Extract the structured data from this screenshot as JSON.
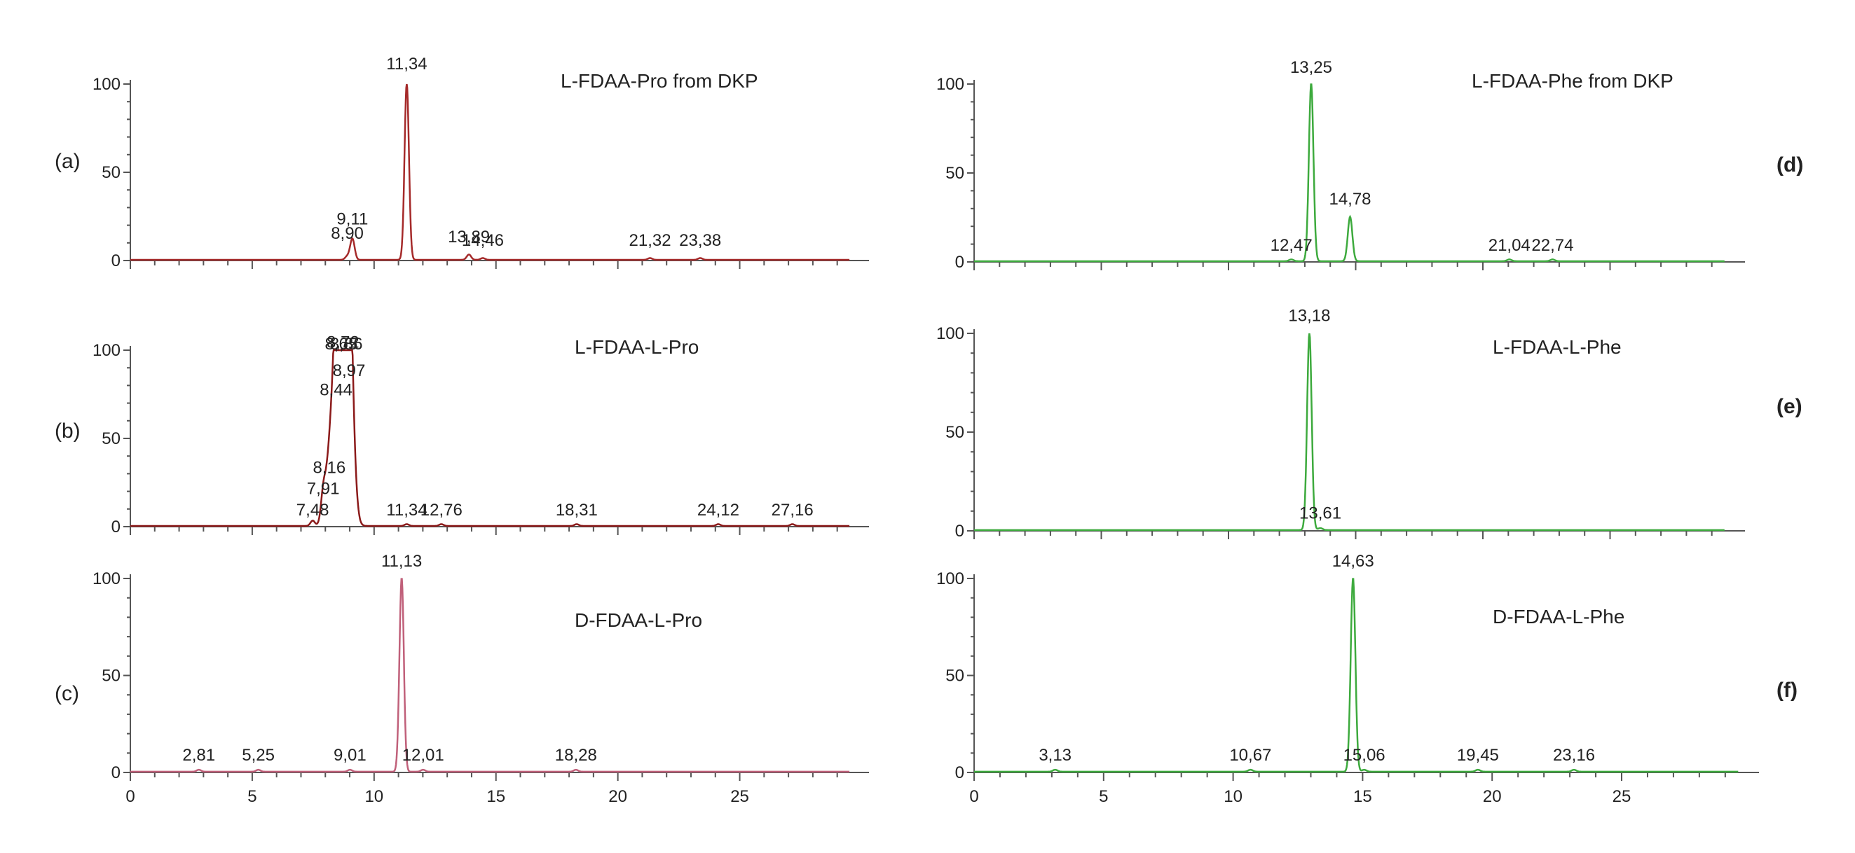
{
  "chart_data": [
    {
      "id": "a",
      "type": "line",
      "panel_label": "(a)",
      "title": "L-FDAA-Pro from DKP",
      "color": "#a52a2a",
      "xlim": [
        0,
        30
      ],
      "ylim": [
        0,
        100
      ],
      "yticks": [
        "0",
        "50",
        "100"
      ],
      "peaks": [
        [
          8.9,
          2
        ],
        [
          9.11,
          12
        ],
        [
          11.34,
          100
        ],
        [
          13.89,
          3
        ],
        [
          14.46,
          1
        ],
        [
          21.32,
          1
        ],
        [
          23.38,
          1
        ]
      ],
      "labels": [
        {
          "text": "8,90",
          "x": 8.9,
          "y": 10
        },
        {
          "text": "9,11",
          "x": 9.11,
          "y": 18
        },
        {
          "text": "11,34",
          "x": 11.34,
          "y": 106
        },
        {
          "text": "13,89",
          "x": 13.89,
          "y": 8
        },
        {
          "text": "14,46",
          "x": 14.46,
          "y": 6
        },
        {
          "text": "21,32",
          "x": 21.32,
          "y": 6
        },
        {
          "text": "23,38",
          "x": 23.38,
          "y": 6
        }
      ]
    },
    {
      "id": "b",
      "type": "line",
      "panel_label": "(b)",
      "title": "L-FDAA-L-Pro",
      "color": "#8b1a1a",
      "xlim": [
        0,
        30
      ],
      "ylim": [
        0,
        100
      ],
      "yticks": [
        "0",
        "50",
        "100"
      ],
      "peaks": [
        [
          7.48,
          3
        ],
        [
          7.91,
          12
        ],
        [
          8.16,
          30
        ],
        [
          8.44,
          65
        ],
        [
          8.65,
          85
        ],
        [
          8.72,
          100
        ],
        [
          8.86,
          92
        ],
        [
          8.97,
          75
        ],
        [
          11.34,
          1
        ],
        [
          12.76,
          1
        ],
        [
          18.31,
          1
        ],
        [
          24.12,
          1
        ],
        [
          27.16,
          1
        ]
      ],
      "labels": [
        {
          "text": "7,48",
          "x": 7.48,
          "y": 4
        },
        {
          "text": "7,91",
          "x": 7.91,
          "y": 16
        },
        {
          "text": "8,16",
          "x": 8.16,
          "y": 28
        },
        {
          "text": "8,44",
          "x": 8.44,
          "y": 72
        },
        {
          "text": "8,65",
          "x": 8.65,
          "y": 98
        },
        {
          "text": "8,72",
          "x": 8.72,
          "y": 99
        },
        {
          "text": "8,86",
          "x": 8.86,
          "y": 98
        },
        {
          "text": "8,97",
          "x": 8.97,
          "y": 83
        },
        {
          "text": "11,34",
          "x": 11.34,
          "y": 4
        },
        {
          "text": "12,76",
          "x": 12.76,
          "y": 4
        },
        {
          "text": "18,31",
          "x": 18.31,
          "y": 4
        },
        {
          "text": "24,12",
          "x": 24.12,
          "y": 4
        },
        {
          "text": "27,16",
          "x": 27.16,
          "y": 4
        }
      ]
    },
    {
      "id": "c",
      "type": "line",
      "panel_label": "(c)",
      "title": "D-FDAA-L-Pro",
      "color": "#c0607a",
      "xlim": [
        0,
        30
      ],
      "ylim": [
        0,
        100
      ],
      "yticks": [
        "0",
        "50",
        "100"
      ],
      "xticks": [
        "0",
        "5",
        "10",
        "15",
        "20",
        "25"
      ],
      "peaks": [
        [
          2.81,
          1
        ],
        [
          5.25,
          1
        ],
        [
          9.01,
          1
        ],
        [
          11.13,
          100
        ],
        [
          12.01,
          1
        ],
        [
          18.28,
          1
        ]
      ],
      "labels": [
        {
          "text": "2,81",
          "x": 2.81,
          "y": 4
        },
        {
          "text": "5,25",
          "x": 5.25,
          "y": 4
        },
        {
          "text": "9,01",
          "x": 9.01,
          "y": 4
        },
        {
          "text": "11,13",
          "x": 11.13,
          "y": 104
        },
        {
          "text": "12,01",
          "x": 12.01,
          "y": 4
        },
        {
          "text": "18,28",
          "x": 18.28,
          "y": 4
        }
      ]
    },
    {
      "id": "d",
      "type": "line",
      "panel_label": "(d)",
      "title": "L-FDAA-Phe from DKP",
      "color": "#3daa3d",
      "xlim": [
        0,
        30
      ],
      "ylim": [
        0,
        100
      ],
      "yticks": [
        "0",
        "50",
        "100"
      ],
      "peaks": [
        [
          12.47,
          1
        ],
        [
          13.25,
          100
        ],
        [
          14.78,
          25
        ],
        [
          21.04,
          1
        ],
        [
          22.74,
          1
        ]
      ],
      "labels": [
        {
          "text": "12,47",
          "x": 12.47,
          "y": 4
        },
        {
          "text": "13,25",
          "x": 13.25,
          "y": 104
        },
        {
          "text": "14,78",
          "x": 14.78,
          "y": 30
        },
        {
          "text": "21,04",
          "x": 21.04,
          "y": 4
        },
        {
          "text": "22,74",
          "x": 22.74,
          "y": 4
        }
      ]
    },
    {
      "id": "e",
      "type": "line",
      "panel_label": "(e)",
      "title": "L-FDAA-L-Phe",
      "color": "#3daa3d",
      "xlim": [
        0,
        30
      ],
      "ylim": [
        0,
        100
      ],
      "yticks": [
        "0",
        "50",
        "100"
      ],
      "peaks": [
        [
          13.18,
          100
        ],
        [
          13.61,
          1
        ]
      ],
      "labels": [
        {
          "text": "13,18",
          "x": 13.18,
          "y": 104
        },
        {
          "text": "13,61",
          "x": 13.61,
          "y": 4
        }
      ]
    },
    {
      "id": "f",
      "type": "line",
      "panel_label": "(f)",
      "title": "D-FDAA-L-Phe",
      "color": "#3daa3d",
      "xlim": [
        0,
        30
      ],
      "ylim": [
        0,
        100
      ],
      "yticks": [
        "0",
        "50",
        "100"
      ],
      "xticks": [
        "0",
        "5",
        "10",
        "15",
        "20",
        "25"
      ],
      "peaks": [
        [
          3.13,
          1
        ],
        [
          10.67,
          1
        ],
        [
          14.63,
          100
        ],
        [
          15.06,
          1
        ],
        [
          19.45,
          1
        ],
        [
          23.16,
          1
        ]
      ],
      "labels": [
        {
          "text": "3,13",
          "x": 3.13,
          "y": 4
        },
        {
          "text": "10,67",
          "x": 10.67,
          "y": 4
        },
        {
          "text": "14,63",
          "x": 14.63,
          "y": 104
        },
        {
          "text": "15,06",
          "x": 15.06,
          "y": 4
        },
        {
          "text": "19,45",
          "x": 19.45,
          "y": 4
        },
        {
          "text": "23,16",
          "x": 23.16,
          "y": 4
        }
      ]
    }
  ]
}
